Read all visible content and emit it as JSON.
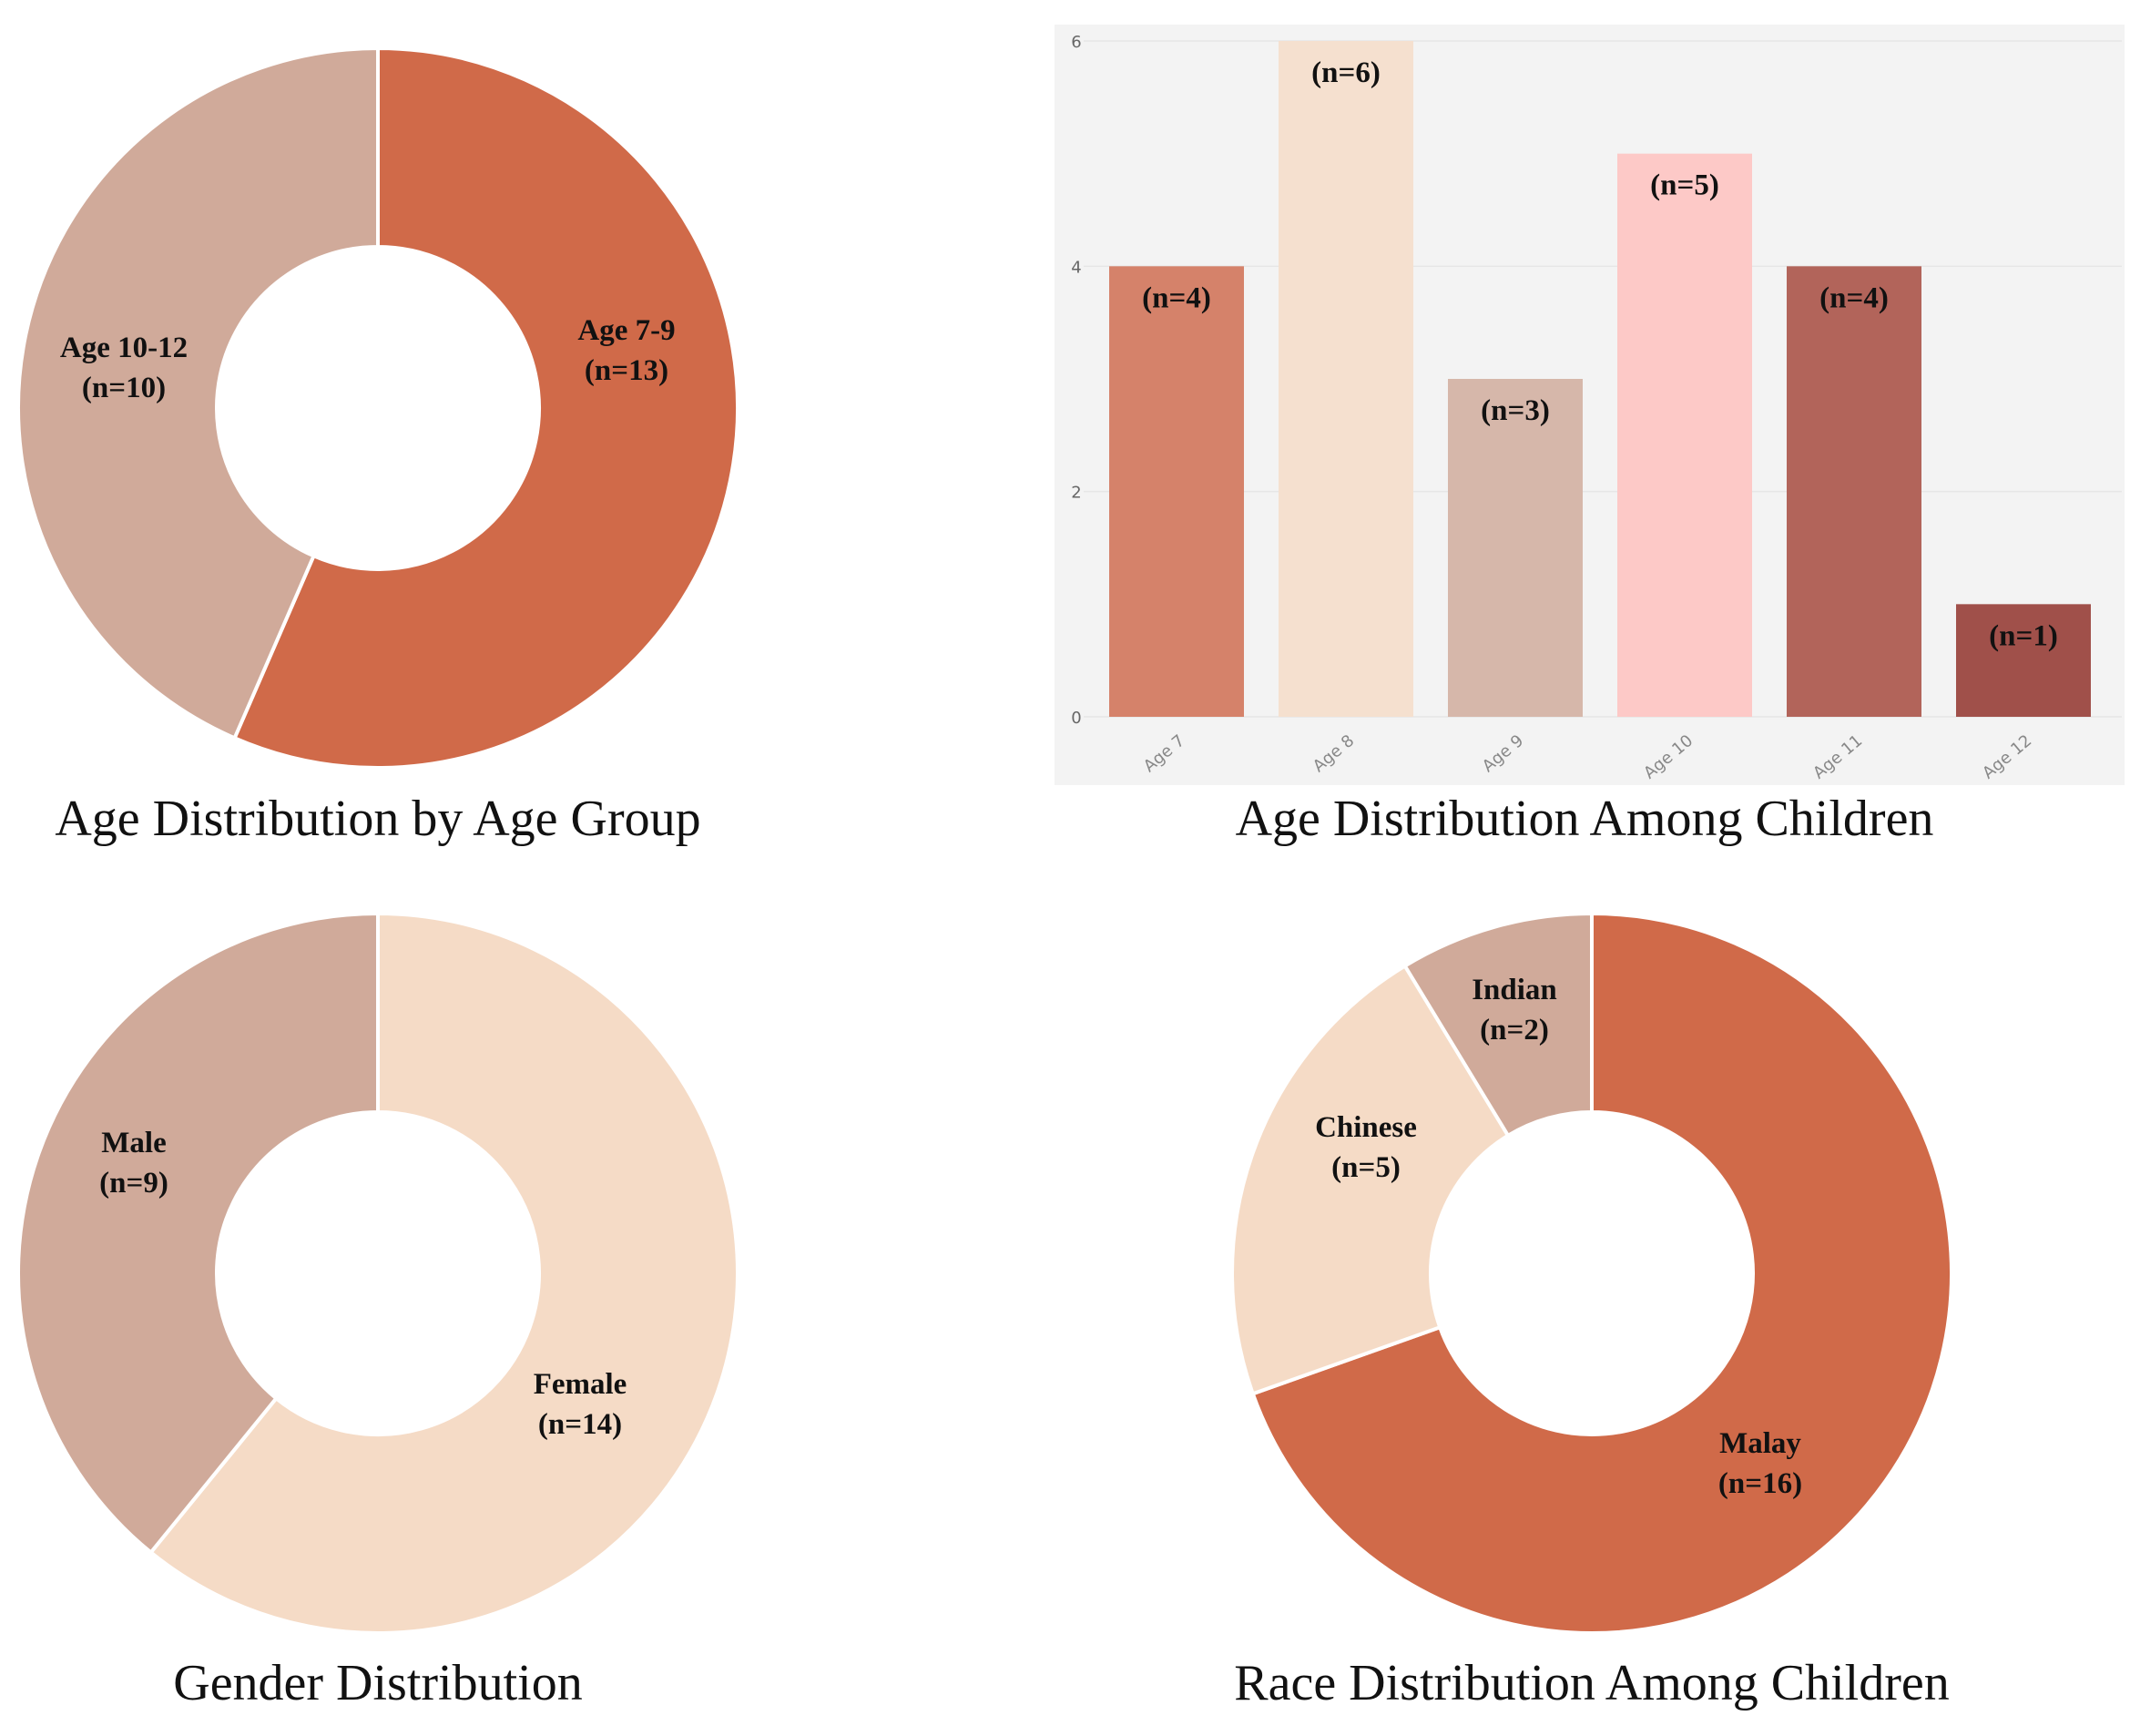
{
  "chart_data": [
    {
      "type": "donut",
      "title": "Age Distribution by Age Group",
      "start": "12 o'clock, clockwise",
      "slices": [
        {
          "label": "Age 7-9",
          "n_label": "(n=13)",
          "value": 13,
          "color": "#D06A49"
        },
        {
          "label": "Age 10-12",
          "n_label": "(n=10)",
          "value": 10,
          "color": "#D0AA9A"
        }
      ]
    },
    {
      "type": "bar",
      "title": "Age Distribution Among Children",
      "categories": [
        "Age 7",
        "Age 8",
        "Age 9",
        "Age 10",
        "Age 11",
        "Age 12"
      ],
      "values": [
        4,
        6,
        3,
        5,
        4,
        1
      ],
      "data_labels": [
        "(n=4)",
        "(n=6)",
        "(n=3)",
        "(n=5)",
        "(n=4)",
        "(n=1)"
      ],
      "colors": [
        "#D5826A",
        "#F5E0CF",
        "#D6B7AA",
        "#FDC9C7",
        "#B2645A",
        "#A0504A"
      ],
      "ylim": [
        0,
        6
      ],
      "yticks": [
        "0",
        "2",
        "4",
        "6"
      ],
      "grid": true,
      "background": "#F3F3F3"
    },
    {
      "type": "donut",
      "title": "Gender Distribution",
      "start": "12 o'clock, clockwise",
      "slices": [
        {
          "label": "Female",
          "n_label": "(n=14)",
          "value": 14,
          "color": "#F5DBC6"
        },
        {
          "label": "Male",
          "n_label": "(n=9)",
          "value": 9,
          "color": "#D0AA9A"
        }
      ]
    },
    {
      "type": "donut",
      "title": "Race Distribution Among Children",
      "start": "12 o'clock, clockwise",
      "slices": [
        {
          "label": "Malay",
          "n_label": "(n=16)",
          "value": 16,
          "color": "#D06A49"
        },
        {
          "label": "Chinese",
          "n_label": "(n=5)",
          "value": 5,
          "color": "#F5DBC6"
        },
        {
          "label": "Indian",
          "n_label": "(n=2)",
          "value": 2,
          "color": "#D0AA9A"
        }
      ]
    }
  ]
}
